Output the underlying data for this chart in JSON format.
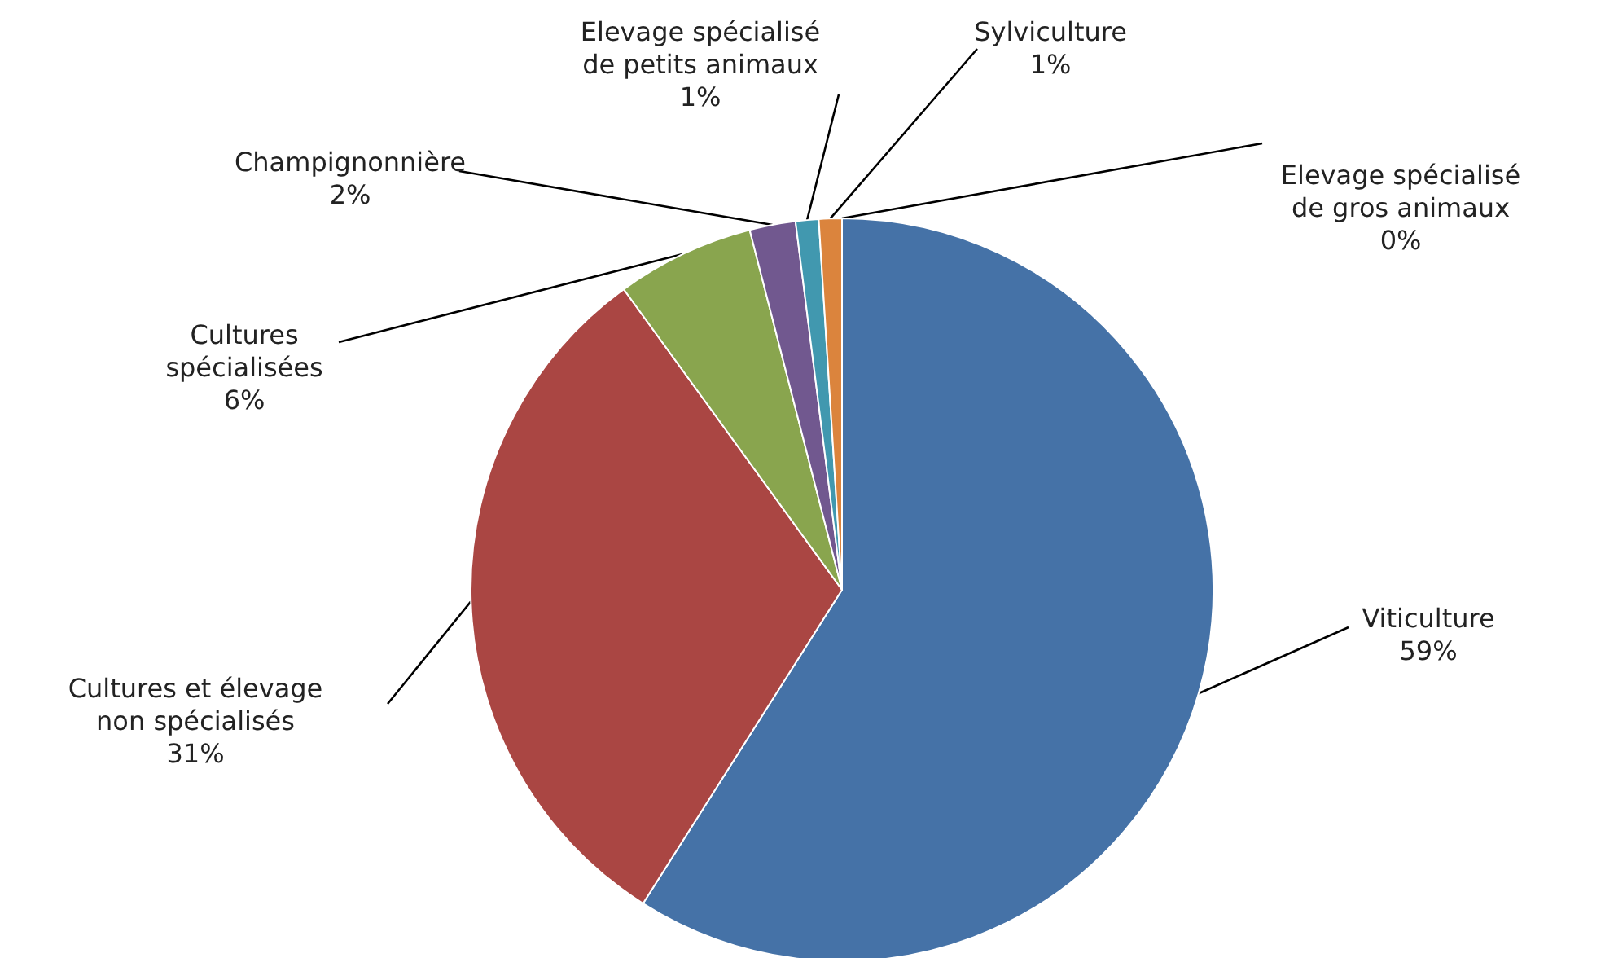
{
  "chart_data": {
    "type": "pie",
    "categories": [
      "Viticulture",
      "Cultures et élevage non spécialisés",
      "Cultures spécialisées",
      "Champignonnière",
      "Elevage spécialisé de petits animaux",
      "Sylviculture",
      "Elevage spécialisé de gros animaux"
    ],
    "values": [
      59,
      31,
      6,
      2,
      1,
      1,
      0
    ],
    "value_labels": [
      "59%",
      "31%",
      "6%",
      "2%",
      "1%",
      "1%",
      "0%"
    ],
    "colors": [
      "#4572a7",
      "#aa4643",
      "#89a54e",
      "#71588f",
      "#4198af",
      "#db843d",
      "#93a9cf"
    ]
  }
}
